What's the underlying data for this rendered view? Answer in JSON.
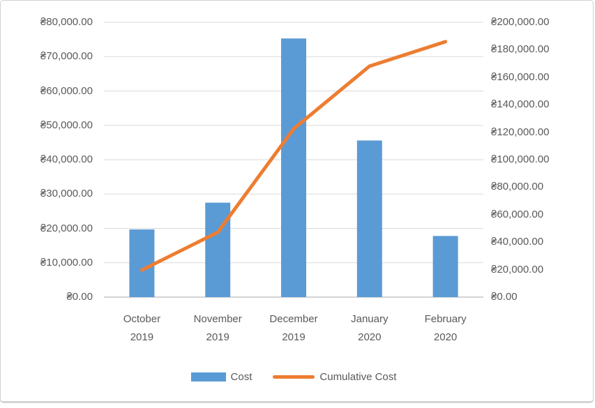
{
  "colors": {
    "bar_blue": "#5B9BD5",
    "line_orange": "#ED7D31",
    "gridline": "#D9D9D9",
    "axis_line": "#C6C6C6",
    "text_gray": "#595959"
  },
  "chart_data": {
    "type": "combo-bar-line",
    "title": "",
    "categories": [
      {
        "month": "October",
        "year": "2019"
      },
      {
        "month": "November",
        "year": "2019"
      },
      {
        "month": "December",
        "year": "2019"
      },
      {
        "month": "January",
        "year": "2020"
      },
      {
        "month": "February",
        "year": "2020"
      }
    ],
    "series": [
      {
        "name": "Cost",
        "kind": "bar",
        "axis": "left",
        "color": "#5B9BD5",
        "values": [
          19700,
          27500,
          75300,
          45600,
          17800
        ]
      },
      {
        "name": "Cumulative Cost",
        "kind": "line",
        "axis": "right",
        "color": "#ED7D31",
        "values": [
          19700,
          47200,
          122500,
          168100,
          185900
        ]
      }
    ],
    "left_axis": {
      "min": 0,
      "max": 80000,
      "step": 10000,
      "tick_labels": [
        "₴80,000.00",
        "₴70,000.00",
        "₴60,000.00",
        "₴50,000.00",
        "₴40,000.00",
        "₴30,000.00",
        "₴20,000.00",
        "₴10,000.00",
        "₴0.00"
      ]
    },
    "right_axis": {
      "min": 0,
      "max": 200000,
      "step": 20000,
      "tick_labels": [
        "₴200,000.00",
        "₴180,000.00",
        "₴160,000.00",
        "₴140,000.00",
        "₴120,000.00",
        "₴100,000.00",
        "₴80,000.00",
        "₴60,000.00",
        "₴40,000.00",
        "₴20,000.00",
        "₴0.00"
      ]
    },
    "grid": true,
    "legend_position": "bottom"
  },
  "legend": {
    "cost_label": "Cost",
    "cumulative_label": "Cumulative Cost"
  }
}
